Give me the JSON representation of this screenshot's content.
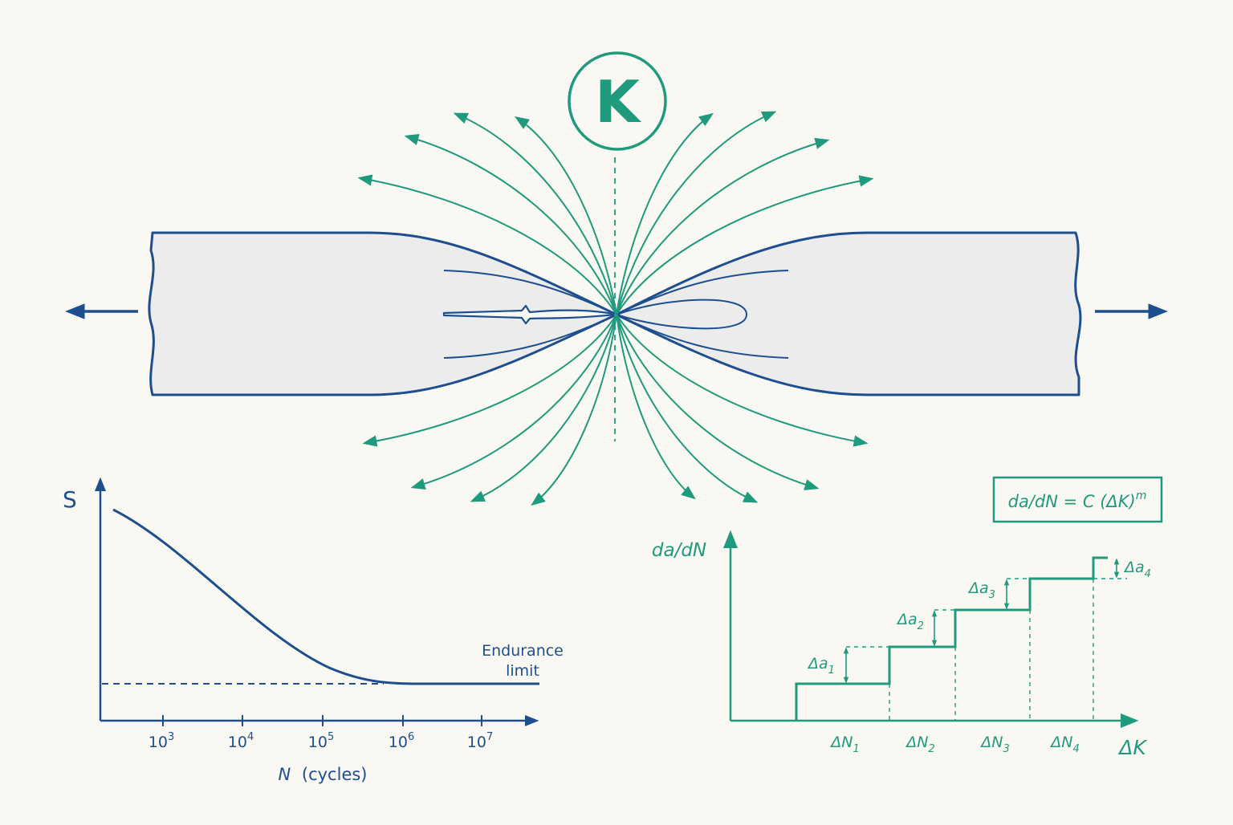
{
  "colors": {
    "background": "#faf8f3",
    "blue": "#1d4f8f",
    "green": "#1f9a7c",
    "specimen_fill": "#ececec"
  },
  "top_diagram": {
    "k_label": "K"
  },
  "sn_curve": {
    "y_label": "S",
    "x_label_var": "N",
    "x_label_rest": "(cycles)",
    "endurance_label_line1": "Endurance",
    "endurance_label_line2": "limit",
    "ticks": [
      {
        "base": "10",
        "exp": "3"
      },
      {
        "base": "10",
        "exp": "4"
      },
      {
        "base": "10",
        "exp": "5"
      },
      {
        "base": "10",
        "exp": "6"
      },
      {
        "base": "10",
        "exp": "7"
      }
    ]
  },
  "growth_chart": {
    "formula": "da/dN = C (ΔK)",
    "formula_exp": "m",
    "y_label": "da/dN",
    "x_label": "ΔK",
    "delta_a": [
      {
        "base": "Δa",
        "sub": "1"
      },
      {
        "base": "Δa",
        "sub": "2"
      },
      {
        "base": "Δa",
        "sub": "3"
      },
      {
        "base": "Δa",
        "sub": "4"
      }
    ],
    "delta_n": [
      {
        "base": "ΔN",
        "sub": "1"
      },
      {
        "base": "ΔN",
        "sub": "2"
      },
      {
        "base": "ΔN",
        "sub": "3"
      },
      {
        "base": "ΔN",
        "sub": "4"
      }
    ]
  }
}
